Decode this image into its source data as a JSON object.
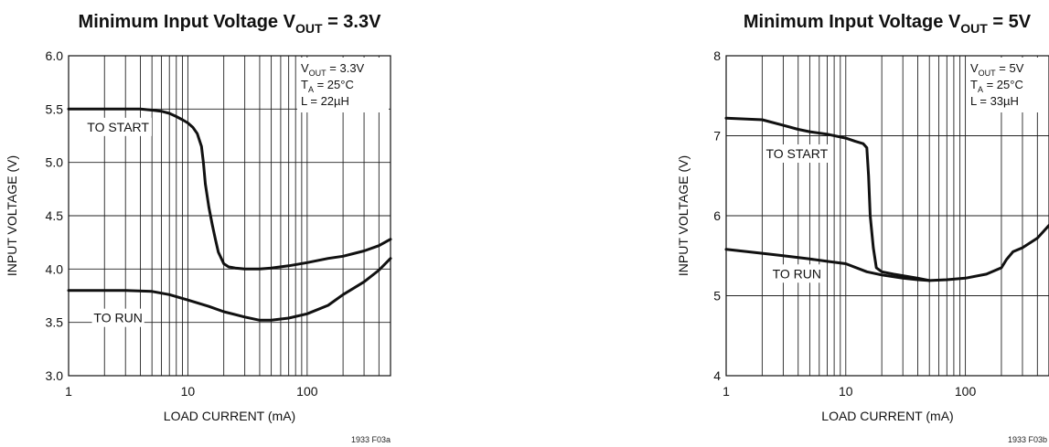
{
  "chart_data": [
    {
      "type": "line",
      "title": "Minimum Input Voltage V",
      "title_sub": "OUT",
      "title_suffix": " = 3.3V",
      "xlabel": "LOAD CURRENT (mA)",
      "ylabel": "INPUT VOLTAGE (V)",
      "x_scale": "log",
      "xlim": [
        1,
        500
      ],
      "ylim": [
        3.0,
        6.0
      ],
      "x_ticks": [
        1,
        10,
        100
      ],
      "x_tick_labels": [
        "1",
        "10",
        "100"
      ],
      "y_ticks": [
        3.0,
        3.5,
        4.0,
        4.5,
        5.0,
        5.5,
        6.0
      ],
      "y_tick_labels": [
        "3.0",
        "3.5",
        "4.0",
        "4.5",
        "5.0",
        "5.5",
        "6.0"
      ],
      "grid": true,
      "conditions": [
        {
          "pre": "V",
          "sub": "OUT",
          "post": " = 3.3V"
        },
        {
          "pre": "T",
          "sub": "A",
          "post": " = 25°C"
        },
        {
          "pre": "L = 22µH",
          "sub": "",
          "post": ""
        }
      ],
      "figure_id": "1933 F03a",
      "series": [
        {
          "name": "TO START",
          "label_at": [
            2.6,
            5.29
          ],
          "x": [
            1,
            2,
            3,
            4,
            5,
            6,
            7,
            8,
            9,
            10,
            11,
            12,
            13,
            13.5,
            14,
            15,
            16,
            17,
            18,
            20,
            22,
            25,
            30,
            40,
            50,
            70,
            100,
            150,
            200,
            300,
            400,
            500
          ],
          "y": [
            5.5,
            5.5,
            5.5,
            5.5,
            5.49,
            5.48,
            5.46,
            5.43,
            5.4,
            5.37,
            5.33,
            5.27,
            5.15,
            5.0,
            4.8,
            4.58,
            4.42,
            4.28,
            4.16,
            4.05,
            4.02,
            4.01,
            4.0,
            4.0,
            4.01,
            4.03,
            4.06,
            4.1,
            4.12,
            4.17,
            4.22,
            4.28
          ]
        },
        {
          "name": "TO RUN",
          "label_at": [
            2.6,
            3.5
          ],
          "x": [
            1,
            2,
            3,
            5,
            7,
            10,
            15,
            20,
            30,
            40,
            50,
            70,
            100,
            150,
            200,
            300,
            400,
            500
          ],
          "y": [
            3.8,
            3.8,
            3.8,
            3.79,
            3.76,
            3.71,
            3.65,
            3.6,
            3.55,
            3.52,
            3.52,
            3.54,
            3.58,
            3.66,
            3.76,
            3.88,
            3.99,
            4.1
          ]
        }
      ]
    },
    {
      "type": "line",
      "title": "Minimum Input Voltage V",
      "title_sub": "OUT",
      "title_suffix": " = 5V",
      "xlabel": "LOAD CURRENT (mA)",
      "ylabel": "INPUT VOLTAGE (V)",
      "x_scale": "log",
      "xlim": [
        1,
        500
      ],
      "ylim": [
        4,
        8
      ],
      "x_ticks": [
        1,
        10,
        100
      ],
      "x_tick_labels": [
        "1",
        "10",
        "100"
      ],
      "y_ticks": [
        4,
        5,
        6,
        7,
        8
      ],
      "y_tick_labels": [
        "4",
        "5",
        "6",
        "7",
        "8"
      ],
      "grid": true,
      "conditions": [
        {
          "pre": "V",
          "sub": "OUT",
          "post": " = 5V"
        },
        {
          "pre": "T",
          "sub": "A",
          "post": " = 25°C"
        },
        {
          "pre": "L = 33µH",
          "sub": "",
          "post": ""
        }
      ],
      "figure_id": "1933 F03b",
      "series": [
        {
          "name": "TO START",
          "label_at": [
            3.9,
            6.72
          ],
          "x": [
            1,
            2,
            3,
            4,
            5,
            7,
            10,
            12,
            14,
            15,
            15.5,
            16,
            17,
            18,
            20,
            25,
            30,
            40,
            50,
            70,
            100,
            150,
            200,
            220,
            250,
            300,
            400,
            500
          ],
          "y": [
            7.22,
            7.2,
            7.13,
            7.08,
            7.05,
            7.02,
            6.97,
            6.93,
            6.9,
            6.85,
            6.5,
            6.0,
            5.6,
            5.35,
            5.3,
            5.27,
            5.25,
            5.22,
            5.19,
            5.2,
            5.22,
            5.27,
            5.35,
            5.45,
            5.55,
            5.6,
            5.72,
            5.88
          ]
        },
        {
          "name": "TO RUN",
          "label_at": [
            3.9,
            5.22
          ],
          "x": [
            1,
            2,
            3,
            5,
            7,
            10,
            15,
            20,
            30,
            40,
            50
          ],
          "y": [
            5.58,
            5.53,
            5.5,
            5.46,
            5.43,
            5.4,
            5.3,
            5.26,
            5.22,
            5.2,
            5.19
          ]
        }
      ]
    }
  ]
}
